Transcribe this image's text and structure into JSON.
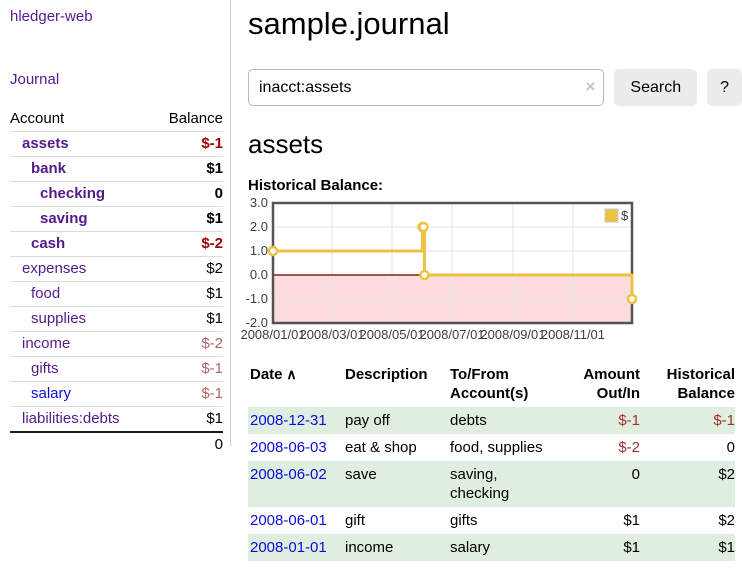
{
  "app": {
    "title": "hledger-web"
  },
  "icons": {
    "sort_ascending": "∧",
    "clear_search": "×"
  },
  "sidebar": {
    "journal_label": "Journal",
    "accounts_table": {
      "headers": {
        "account": "Account",
        "balance": "Balance"
      },
      "rows": [
        {
          "name": "assets",
          "depth": 1,
          "bold": true,
          "balance": "$-1",
          "balance_style": "neg-strong",
          "link_color": "purple"
        },
        {
          "name": "bank",
          "depth": 2,
          "bold": true,
          "balance": "$1",
          "balance_style": "pos",
          "link_color": "purple"
        },
        {
          "name": "checking",
          "depth": 3,
          "bold": true,
          "balance": "0",
          "balance_style": "pos",
          "link_color": "purple"
        },
        {
          "name": "saving",
          "depth": 3,
          "bold": true,
          "balance": "$1",
          "balance_style": "pos",
          "link_color": "purple"
        },
        {
          "name": "cash",
          "depth": 2,
          "bold": true,
          "balance": "$-2",
          "balance_style": "neg-strong",
          "link_color": "purple"
        },
        {
          "name": "expenses",
          "depth": 1,
          "bold": false,
          "balance": "$2",
          "balance_style": "pos",
          "link_color": "purple"
        },
        {
          "name": "food",
          "depth": 2,
          "bold": false,
          "balance": "$1",
          "balance_style": "pos",
          "link_color": "purple"
        },
        {
          "name": "supplies",
          "depth": 2,
          "bold": false,
          "balance": "$1",
          "balance_style": "pos",
          "link_color": "purple"
        },
        {
          "name": "income",
          "depth": 1,
          "bold": false,
          "balance": "$-2",
          "balance_style": "neg-muted",
          "link_color": "purple"
        },
        {
          "name": "gifts",
          "depth": 2,
          "bold": false,
          "balance": "$-1",
          "balance_style": "neg-muted",
          "link_color": "purple"
        },
        {
          "name": "salary",
          "depth": 2,
          "bold": false,
          "balance": "$-1",
          "balance_style": "neg-muted",
          "link_color": "blue"
        },
        {
          "name": "liabilities:debts",
          "depth": 1,
          "bold": false,
          "balance": "$1",
          "balance_style": "pos",
          "link_color": "purple"
        }
      ],
      "total": "0"
    }
  },
  "header": {
    "title": "sample.journal"
  },
  "search": {
    "value": "inacct:assets",
    "button_label": "Search",
    "help_label": "?"
  },
  "main": {
    "account_heading": "assets"
  },
  "chart_data": {
    "type": "line",
    "title": "Historical Balance:",
    "steps": true,
    "series": [
      {
        "name": "$",
        "color": "#EDC240",
        "points": [
          [
            "2008-01-01",
            1
          ],
          [
            "2008-06-01",
            2
          ],
          [
            "2008-06-02",
            2
          ],
          [
            "2008-06-03",
            0
          ],
          [
            "2008-12-31",
            -1
          ]
        ]
      }
    ],
    "x_ticks": [
      "2008/01/01",
      "2008/03/01",
      "2008/05/01",
      "2008/07/01",
      "2008/09/01",
      "2008/11/01"
    ],
    "y_ticks": [
      3.0,
      2.0,
      1.0,
      0.0,
      -1.0,
      -2.0
    ],
    "xlim": [
      "2008-01-01",
      "2008-12-31"
    ],
    "ylim": [
      -2,
      3
    ],
    "grid": true,
    "legend_position": "top-right",
    "marker": "open-circle",
    "negative_region_color": "#fcdcdc",
    "zero_line_color": "#8b1a1a",
    "border_color": "#545454",
    "gridline_color": "#e3e3e3"
  },
  "register_table": {
    "headers": [
      {
        "label": "Date",
        "align": "left",
        "sortable": true
      },
      {
        "label": "Description",
        "align": "left"
      },
      {
        "label": "To/From Account(s)",
        "align": "left"
      },
      {
        "label": "Amount Out/In",
        "align": "right"
      },
      {
        "label": "Historical Balance",
        "align": "right"
      }
    ],
    "rows": [
      {
        "date": "2008-12-31",
        "description": "pay off",
        "accounts": "debts",
        "amount": "$-1",
        "amount_neg": true,
        "balance": "$-1",
        "balance_neg": true
      },
      {
        "date": "2008-06-03",
        "description": "eat & shop",
        "accounts": "food, supplies",
        "amount": "$-2",
        "amount_neg": true,
        "balance": "0",
        "balance_neg": false
      },
      {
        "date": "2008-06-02",
        "description": "save",
        "accounts": "saving, checking",
        "amount": "0",
        "amount_neg": false,
        "balance": "$2",
        "balance_neg": false
      },
      {
        "date": "2008-06-01",
        "description": "gift",
        "accounts": "gifts",
        "amount": "$1",
        "amount_neg": false,
        "balance": "$2",
        "balance_neg": false
      },
      {
        "date": "2008-01-01",
        "description": "income",
        "accounts": "salary",
        "amount": "$1",
        "amount_neg": false,
        "balance": "$1",
        "balance_neg": false
      }
    ]
  }
}
